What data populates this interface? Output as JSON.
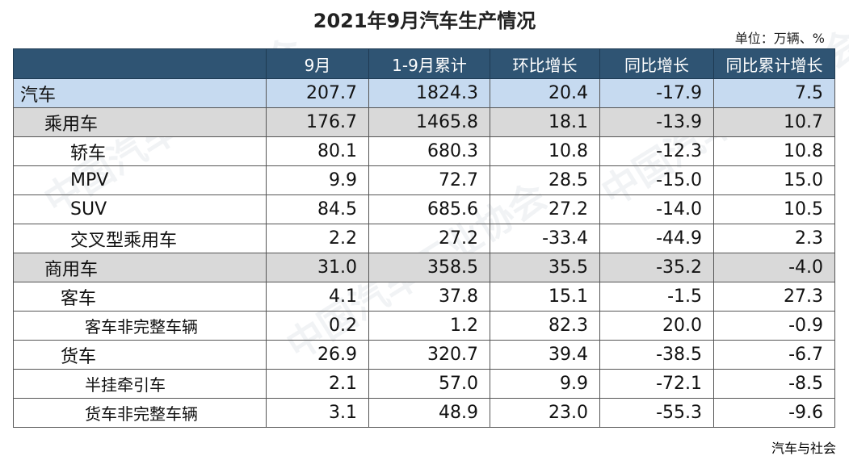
{
  "title": "2021年9月汽车生产情况",
  "unit": "单位：万辆、%",
  "source": "汽车与社会",
  "watermark": "中国汽车工业协会",
  "headers": [
    "",
    "9月",
    "1-9月累计",
    "环比增长",
    "同比增长",
    "同比累计增长"
  ],
  "rows": [
    {
      "label": "汽车",
      "level": 0,
      "values": [
        "207.7",
        "1824.3",
        "20.4",
        "-17.9",
        "7.5"
      ]
    },
    {
      "label": "乘用车",
      "level": 1,
      "values": [
        "176.7",
        "1465.8",
        "18.1",
        "-13.9",
        "10.7"
      ]
    },
    {
      "label": "轿车",
      "level": 2,
      "values": [
        "80.1",
        "680.3",
        "10.8",
        "-12.3",
        "10.8"
      ]
    },
    {
      "label": "MPV",
      "level": 2,
      "values": [
        "9.9",
        "72.7",
        "28.5",
        "-15.0",
        "15.0"
      ]
    },
    {
      "label": "SUV",
      "level": 2,
      "values": [
        "84.5",
        "685.6",
        "27.2",
        "-14.0",
        "10.5"
      ]
    },
    {
      "label": "交叉型乘用车",
      "level": 2,
      "values": [
        "2.2",
        "27.2",
        "-33.4",
        "-44.9",
        "2.3"
      ]
    },
    {
      "label": "商用车",
      "level": 1,
      "values": [
        "31.0",
        "358.5",
        "35.5",
        "-35.2",
        "-4.0"
      ]
    },
    {
      "label": "客车",
      "level": 2,
      "values": [
        "4.1",
        "37.8",
        "15.1",
        "-1.5",
        "27.3"
      ]
    },
    {
      "label": "客车非完整车辆",
      "level": 3,
      "values": [
        "0.2",
        "1.2",
        "82.3",
        "20.0",
        "-0.9"
      ]
    },
    {
      "label": "货车",
      "level": 2,
      "values": [
        "26.9",
        "320.7",
        "39.4",
        "-38.5",
        "-6.7"
      ]
    },
    {
      "label": "半挂牵引车",
      "level": 3,
      "values": [
        "2.1",
        "57.0",
        "9.9",
        "-72.1",
        "-8.5"
      ]
    },
    {
      "label": "货车非完整车辆",
      "level": 3,
      "values": [
        "3.1",
        "48.9",
        "23.0",
        "-55.3",
        "-9.6"
      ]
    }
  ]
}
